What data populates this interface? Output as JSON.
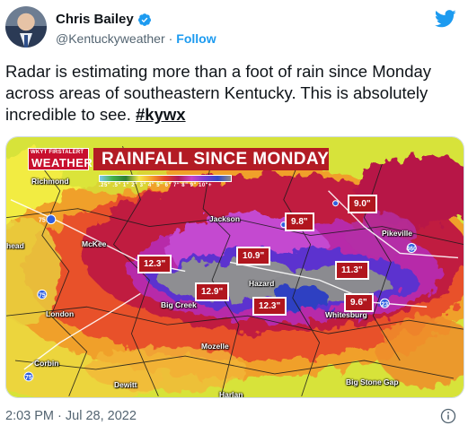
{
  "author": {
    "display_name": "Chris Bailey",
    "handle": "@Kentuckyweather",
    "separator": "·",
    "follow_label": "Follow",
    "verified": true
  },
  "tweet": {
    "text": "Radar is estimating more than a foot of rain since Monday across areas of southeastern Kentucky. This is absolutely incredible to see. ",
    "hashtag": "#kywx",
    "timestamp": "2:03 PM · Jul 28, 2022"
  },
  "media": {
    "logo_top": "WKYT FIRSTALERT",
    "logo_main": "WEATHER",
    "title": "RAINFALL SINCE MONDAY",
    "scale_labels": ".25\" .5\" 1\" 2\" 3\" 4\" 5\" 6\" 7\" 8\" 9\" 10\"+",
    "places": [
      {
        "name": "Richmond"
      },
      {
        "name": "Jackson"
      },
      {
        "name": "Pikeville"
      },
      {
        "name": "McKee"
      },
      {
        "name": "Hazard"
      },
      {
        "name": "Big Creek"
      },
      {
        "name": "London"
      },
      {
        "name": "Whitesburg"
      },
      {
        "name": "Mozelle"
      },
      {
        "name": "Corbin"
      },
      {
        "name": "Dewitt"
      },
      {
        "name": "Big Stone Gap"
      },
      {
        "name": "Harlan"
      },
      {
        "name": "head"
      }
    ],
    "totals": [
      "9.0\"",
      "9.8\"",
      "10.9\"",
      "12.3\"",
      "11.3\"",
      "12.9\"",
      "12.3\"",
      "9.6\""
    ]
  },
  "colors": {
    "accent": "#1d9bf0",
    "banner_red": "#b31b24",
    "text_secondary": "#536471"
  }
}
